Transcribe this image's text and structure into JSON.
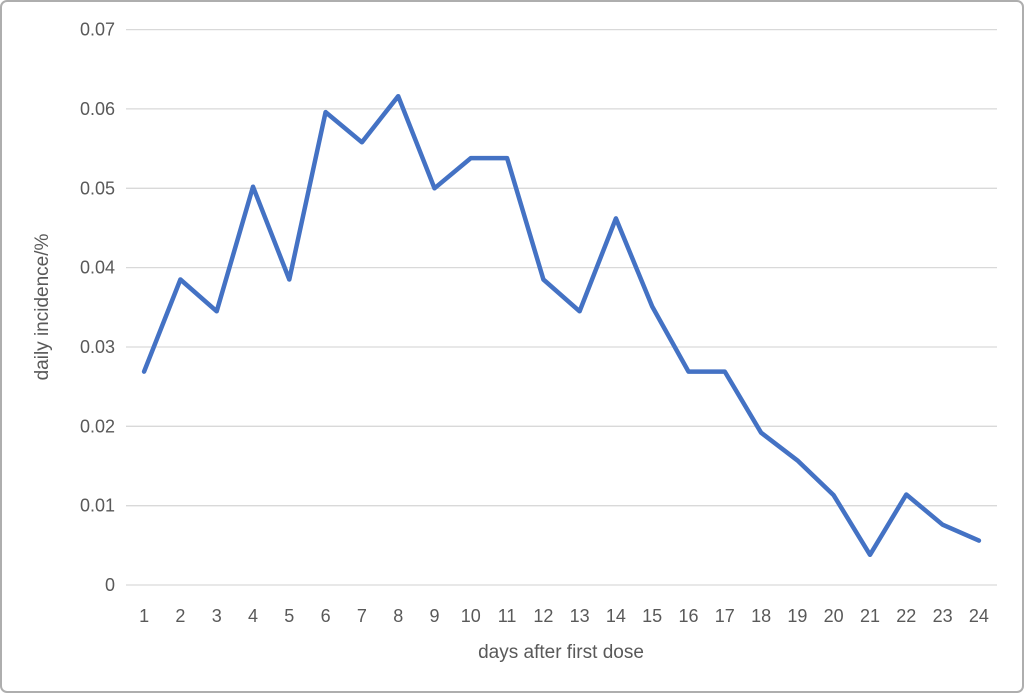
{
  "chart_data": {
    "type": "line",
    "title": "",
    "xlabel": "days after first dose",
    "ylabel": "daily incidence/%",
    "categories": [
      1,
      2,
      3,
      4,
      5,
      6,
      7,
      8,
      9,
      10,
      11,
      12,
      13,
      14,
      15,
      16,
      17,
      18,
      19,
      20,
      21,
      22,
      23,
      24
    ],
    "series": [
      {
        "name": "daily incidence",
        "color": "#4472C4",
        "values": [
          0.0269,
          0.0385,
          0.0345,
          0.0502,
          0.0385,
          0.0596,
          0.0558,
          0.0616,
          0.05,
          0.0538,
          0.0538,
          0.0385,
          0.0345,
          0.0462,
          0.0351,
          0.0269,
          0.0269,
          0.0192,
          0.0157,
          0.0113,
          0.0038,
          0.0114,
          0.0076,
          0.0056
        ]
      }
    ],
    "ylim": [
      0,
      0.07
    ],
    "yticks": [
      0,
      0.01,
      0.02,
      0.03,
      0.04,
      0.05,
      0.06,
      0.07
    ],
    "ytick_labels": [
      "0",
      "0.01",
      "0.02",
      "0.03",
      "0.04",
      "0.05",
      "0.06",
      "0.07"
    ],
    "grid": "horizontal",
    "legend": "none"
  },
  "colors": {
    "line": "#4472C4",
    "grid": "#D9D9D9",
    "text": "#595959",
    "border": "#AEAEAE",
    "background": "#FFFFFF"
  }
}
